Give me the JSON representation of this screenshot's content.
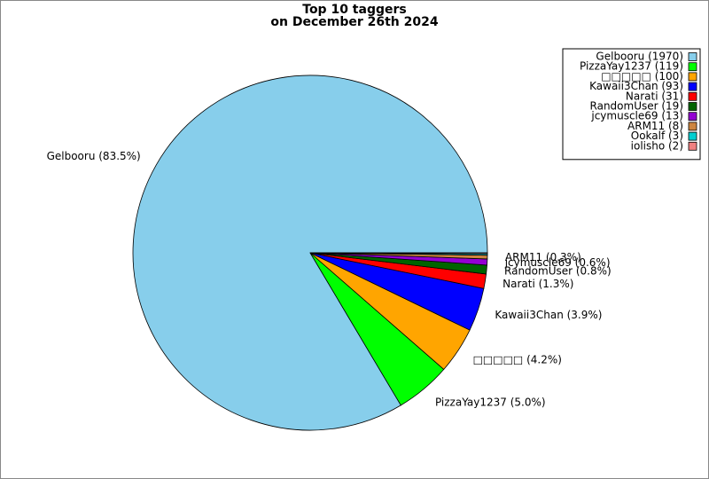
{
  "chart_data": {
    "type": "pie",
    "title": [
      "Top 10 taggers",
      "on December 26th 2024"
    ],
    "labels": [
      "Gelbooru (1970)",
      "PizzaYay1237 (119)",
      "□□□□□ (100)",
      "Kawaii3Chan (93)",
      "Narati (31)",
      "RandomUser (19)",
      "jcymuscle69 (13)",
      "ARM11 (8)",
      "Ookalf (3)",
      "iolisho (2)"
    ],
    "values": [
      1970,
      119,
      100,
      93,
      31,
      19,
      13,
      8,
      3,
      2
    ],
    "value_labels": [
      "Gelbooru (83.5%)",
      "PizzaYay1237 (5.0%)",
      "□□□□□ (4.2%)",
      "Kawaii3Chan (3.9%)",
      "Narati (1.3%)",
      "RandomUser (0.8%)",
      "jcymuscle69 (0.6%)",
      "ARM11 (0.3%)",
      null,
      null
    ],
    "colors": [
      "#87ceeb",
      "#00ff00",
      "#ffa500",
      "#0000ff",
      "#ff0000",
      "#006400",
      "#9400d3",
      "#cd853f",
      "#00ced1",
      "#f08080"
    ],
    "legend": "upper right"
  }
}
